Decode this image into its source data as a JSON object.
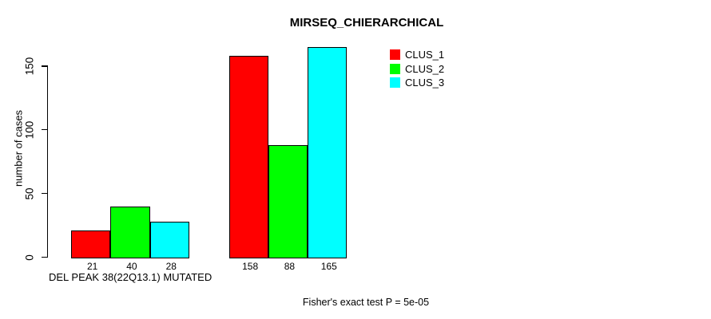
{
  "chart_data": {
    "type": "bar",
    "title": "MIRSEQ_CHIERARCHICAL",
    "ylabel": "number of cases",
    "xlabel": "DEL PEAK 38(22Q13.1) MUTATED",
    "annotation": "Fisher's exact test P = 5e-05",
    "yticks": [
      0,
      50,
      100,
      150
    ],
    "ylim": [
      0,
      165
    ],
    "grid": false,
    "legend_position": "top-right",
    "bar_value_labels_shown": true,
    "series": [
      {
        "name": "CLUS_1",
        "color": "#ff0000",
        "values": [
          21,
          158
        ]
      },
      {
        "name": "CLUS_2",
        "color": "#00ff00",
        "values": [
          40,
          88
        ]
      },
      {
        "name": "CLUS_3",
        "color": "#00ffff",
        "values": [
          28,
          165
        ]
      }
    ]
  }
}
